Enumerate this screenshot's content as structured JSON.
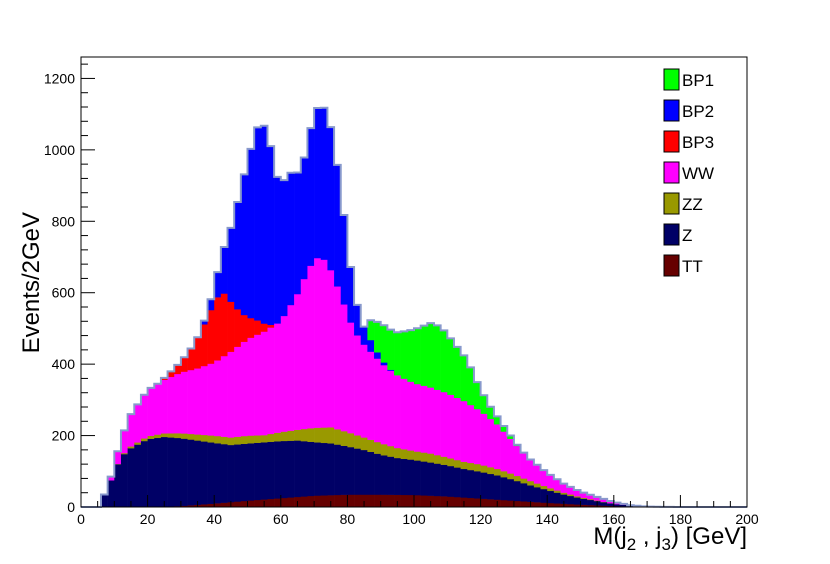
{
  "chart_data": {
    "type": "bar",
    "stacked": true,
    "title": "",
    "xlabel": "M(j",
    "xlabel_sub1": "2",
    "xlabel_mid": " , j",
    "xlabel_sub2": "3",
    "xlabel_end": ") [GeV]",
    "ylabel": "Events/2GeV",
    "xlim": [
      0,
      200
    ],
    "ylim": [
      0,
      1260
    ],
    "bin_width": 2,
    "x_ticks": [
      0,
      20,
      40,
      60,
      80,
      100,
      120,
      140,
      160,
      180,
      200
    ],
    "y_ticks": [
      0,
      200,
      400,
      600,
      800,
      1000,
      1200
    ],
    "grid": false,
    "legend_position": "top-right",
    "legend_order": [
      "BP1",
      "BP2",
      "BP3",
      "WW",
      "ZZ",
      "Z",
      "TT"
    ],
    "stack_order": [
      "TT",
      "Z",
      "ZZ",
      "WW",
      "BP3",
      "BP2",
      "BP1"
    ],
    "series": [
      {
        "name": "BP1",
        "color": "#00ff00",
        "anchors": [
          [
            85,
            0
          ],
          [
            86,
            40
          ],
          [
            90,
            100
          ],
          [
            95,
            120
          ],
          [
            100,
            150
          ],
          [
            105,
            180
          ],
          [
            108,
            180
          ],
          [
            112,
            150
          ],
          [
            116,
            120
          ],
          [
            120,
            60
          ],
          [
            124,
            25
          ],
          [
            128,
            12
          ],
          [
            132,
            0
          ]
        ]
      },
      {
        "name": "BP2",
        "color": "#0000ff",
        "anchors": [
          [
            36,
            0
          ],
          [
            40,
            40
          ],
          [
            44,
            160
          ],
          [
            47,
            300
          ],
          [
            50,
            440
          ],
          [
            53,
            540
          ],
          [
            56,
            560
          ],
          [
            58,
            440
          ],
          [
            60,
            380
          ],
          [
            62,
            380
          ],
          [
            64,
            360
          ],
          [
            66,
            320
          ],
          [
            68,
            360
          ],
          [
            70,
            410
          ],
          [
            72,
            430
          ],
          [
            74,
            420
          ],
          [
            76,
            380
          ],
          [
            78,
            300
          ],
          [
            80,
            200
          ],
          [
            82,
            110
          ],
          [
            84,
            60
          ],
          [
            86,
            40
          ],
          [
            90,
            10
          ],
          [
            94,
            0
          ]
        ]
      },
      {
        "name": "BP3",
        "color": "#ff0000",
        "anchors": [
          [
            24,
            0
          ],
          [
            26,
            10
          ],
          [
            30,
            30
          ],
          [
            33,
            60
          ],
          [
            36,
            100
          ],
          [
            39,
            150
          ],
          [
            42,
            190
          ],
          [
            44,
            160
          ],
          [
            46,
            120
          ],
          [
            50,
            60
          ],
          [
            52,
            50
          ],
          [
            54,
            30
          ],
          [
            58,
            0
          ]
        ]
      },
      {
        "name": "WW",
        "color": "#ff00ff",
        "anchors": [
          [
            8,
            0
          ],
          [
            10,
            20
          ],
          [
            12,
            50
          ],
          [
            15,
            90
          ],
          [
            20,
            130
          ],
          [
            25,
            150
          ],
          [
            30,
            170
          ],
          [
            35,
            185
          ],
          [
            40,
            205
          ],
          [
            45,
            240
          ],
          [
            50,
            270
          ],
          [
            55,
            290
          ],
          [
            60,
            310
          ],
          [
            65,
            380
          ],
          [
            68,
            440
          ],
          [
            70,
            470
          ],
          [
            72,
            480
          ],
          [
            74,
            460
          ],
          [
            76,
            420
          ],
          [
            78,
            380
          ],
          [
            80,
            330
          ],
          [
            82,
            290
          ],
          [
            85,
            260
          ],
          [
            88,
            240
          ],
          [
            92,
            215
          ],
          [
            96,
            200
          ],
          [
            100,
            190
          ],
          [
            105,
            185
          ],
          [
            110,
            180
          ],
          [
            115,
            170
          ],
          [
            120,
            150
          ],
          [
            125,
            125
          ],
          [
            130,
            90
          ],
          [
            135,
            60
          ],
          [
            140,
            40
          ],
          [
            145,
            25
          ],
          [
            150,
            15
          ],
          [
            155,
            10
          ],
          [
            160,
            5
          ],
          [
            165,
            0
          ]
        ]
      },
      {
        "name": "ZZ",
        "color": "#999900",
        "anchors": [
          [
            10,
            0
          ],
          [
            15,
            5
          ],
          [
            20,
            8
          ],
          [
            25,
            10
          ],
          [
            30,
            14
          ],
          [
            40,
            20
          ],
          [
            50,
            22
          ],
          [
            55,
            20
          ],
          [
            60,
            25
          ],
          [
            65,
            30
          ],
          [
            70,
            40
          ],
          [
            75,
            45
          ],
          [
            80,
            40
          ],
          [
            85,
            35
          ],
          [
            90,
            32
          ],
          [
            95,
            28
          ],
          [
            100,
            25
          ],
          [
            105,
            25
          ],
          [
            110,
            22
          ],
          [
            115,
            20
          ],
          [
            120,
            20
          ],
          [
            125,
            18
          ],
          [
            130,
            15
          ],
          [
            135,
            12
          ],
          [
            140,
            8
          ],
          [
            145,
            5
          ],
          [
            150,
            3
          ],
          [
            160,
            0
          ]
        ]
      },
      {
        "name": "Z",
        "color": "#000066",
        "anchors": [
          [
            6,
            20
          ],
          [
            8,
            50
          ],
          [
            10,
            100
          ],
          [
            12,
            140
          ],
          [
            15,
            165
          ],
          [
            18,
            180
          ],
          [
            20,
            190
          ],
          [
            25,
            195
          ],
          [
            30,
            190
          ],
          [
            35,
            180
          ],
          [
            40,
            170
          ],
          [
            45,
            160
          ],
          [
            50,
            160
          ],
          [
            55,
            160
          ],
          [
            60,
            160
          ],
          [
            65,
            158
          ],
          [
            70,
            150
          ],
          [
            75,
            145
          ],
          [
            80,
            135
          ],
          [
            85,
            125
          ],
          [
            90,
            112
          ],
          [
            95,
            103
          ],
          [
            100,
            98
          ],
          [
            105,
            93
          ],
          [
            110,
            87
          ],
          [
            115,
            80
          ],
          [
            120,
            75
          ],
          [
            125,
            68
          ],
          [
            130,
            58
          ],
          [
            135,
            46
          ],
          [
            140,
            36
          ],
          [
            145,
            26
          ],
          [
            150,
            18
          ],
          [
            155,
            12
          ],
          [
            160,
            6
          ],
          [
            165,
            3
          ],
          [
            170,
            0
          ]
        ]
      },
      {
        "name": "TT",
        "color": "#660000",
        "anchors": [
          [
            20,
            0
          ],
          [
            30,
            3
          ],
          [
            40,
            10
          ],
          [
            50,
            18
          ],
          [
            60,
            25
          ],
          [
            70,
            32
          ],
          [
            80,
            35
          ],
          [
            90,
            35
          ],
          [
            100,
            34
          ],
          [
            110,
            30
          ],
          [
            120,
            24
          ],
          [
            130,
            18
          ],
          [
            140,
            12
          ],
          [
            150,
            7
          ],
          [
            160,
            3
          ],
          [
            170,
            1
          ],
          [
            180,
            0
          ]
        ]
      }
    ],
    "outline_color": "#8899cc"
  }
}
